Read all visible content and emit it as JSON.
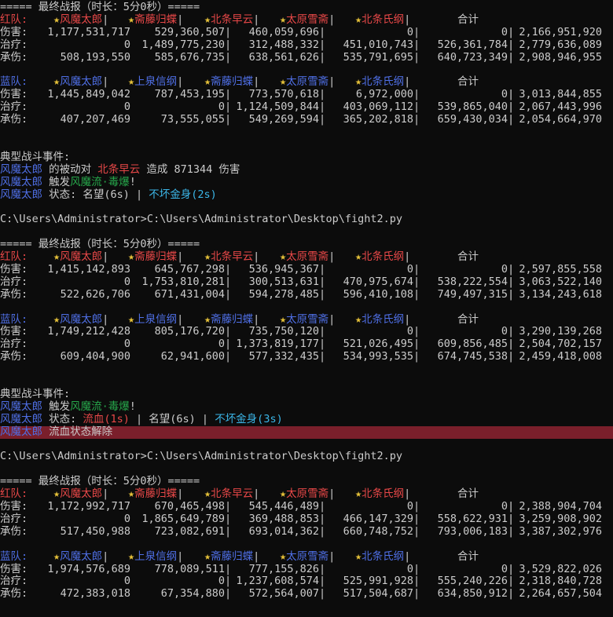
{
  "colors": {
    "red": "#e84848",
    "blue": "#4f6fe6",
    "green": "#27a84b",
    "cyan": "#3bb6e8",
    "white": "#cccccc",
    "gold": "#e8c33a",
    "highlight": "#7a1f2b"
  },
  "prompt": "C:\\Users\\Administrator>C:\\Users\\Administrator\\Desktop\\fight2.py",
  "blocks": [
    {
      "header": "===== 最终战报（时长：5分0秒）=====",
      "red_team": {
        "label": "红队:",
        "names": [
          "风魔太郎",
          "斋藤归蝶",
          "北条早云",
          "太原雪斋",
          "北条氏纲"
        ],
        "total_label": "合计",
        "rows": [
          {
            "label": "伤害:",
            "values": [
              "1,177,531,717",
              "529,360,507",
              "460,059,696",
              "0",
              "0",
              "2,166,951,920"
            ]
          },
          {
            "label": "治疗:",
            "values": [
              "0",
              "1,489,775,230",
              "312,488,332",
              "451,010,743",
              "526,361,784",
              "2,779,636,089"
            ]
          },
          {
            "label": "承伤:",
            "values": [
              "508,193,550",
              "585,676,735",
              "638,561,626",
              "535,791,695",
              "640,723,349",
              "2,908,946,955"
            ]
          }
        ]
      },
      "blue_team": {
        "label": "蓝队:",
        "names": [
          "风魔太郎",
          "上泉信纲",
          "斋藤归蝶",
          "太原雪斋",
          "北条氏纲"
        ],
        "total_label": "合计",
        "rows": [
          {
            "label": "伤害:",
            "values": [
              "1,445,849,042",
              "787,453,195",
              "773,570,618",
              "6,972,000",
              "0",
              "3,013,844,855"
            ]
          },
          {
            "label": "治疗:",
            "values": [
              "0",
              "0",
              "1,124,509,844",
              "403,069,112",
              "539,865,040",
              "2,067,443,996"
            ]
          },
          {
            "label": "承伤:",
            "values": [
              "407,207,469",
              "73,555,055",
              "549,269,594",
              "365,202,818",
              "659,430,034",
              "2,054,664,970"
            ]
          }
        ]
      },
      "events_title": "典型战斗事件:",
      "events": [
        [
          {
            "t": "风魔太郎",
            "c": "blue"
          },
          {
            "t": " 的被动对 ",
            "c": "white"
          },
          {
            "t": "北条早云",
            "c": "red"
          },
          {
            "t": " 造成 871344 伤害",
            "c": "white"
          }
        ],
        [
          {
            "t": "风魔太郎",
            "c": "blue"
          },
          {
            "t": " 触发",
            "c": "white"
          },
          {
            "t": "风魔流·毒爆",
            "c": "green"
          },
          {
            "t": "!",
            "c": "white"
          }
        ],
        [
          {
            "t": "风魔太郎",
            "c": "blue"
          },
          {
            "t": " 状态: 名望(6s) | ",
            "c": "white"
          },
          {
            "t": "不坏金身(2s)",
            "c": "cyan"
          }
        ]
      ]
    },
    {
      "header": "===== 最终战报（时长：5分0秒）=====",
      "red_team": {
        "label": "红队:",
        "names": [
          "风魔太郎",
          "斋藤归蝶",
          "北条早云",
          "太原雪斋",
          "北条氏纲"
        ],
        "total_label": "合计",
        "rows": [
          {
            "label": "伤害:",
            "values": [
              "1,415,142,893",
              "645,767,298",
              "536,945,367",
              "0",
              "0",
              "2,597,855,558"
            ]
          },
          {
            "label": "治疗:",
            "values": [
              "0",
              "1,753,810,281",
              "300,513,631",
              "470,975,674",
              "538,222,554",
              "3,063,522,140"
            ]
          },
          {
            "label": "承伤:",
            "values": [
              "522,626,706",
              "671,431,004",
              "594,278,485",
              "596,410,108",
              "749,497,315",
              "3,134,243,618"
            ]
          }
        ]
      },
      "blue_team": {
        "label": "蓝队:",
        "names": [
          "风魔太郎",
          "上泉信纲",
          "斋藤归蝶",
          "太原雪斋",
          "北条氏纲"
        ],
        "total_label": "合计",
        "rows": [
          {
            "label": "伤害:",
            "values": [
              "1,749,212,428",
              "805,176,720",
              "735,750,120",
              "0",
              "0",
              "3,290,139,268"
            ]
          },
          {
            "label": "治疗:",
            "values": [
              "0",
              "0",
              "1,373,819,177",
              "521,026,495",
              "609,856,485",
              "2,504,702,157"
            ]
          },
          {
            "label": "承伤:",
            "values": [
              "609,404,900",
              "62,941,600",
              "577,332,435",
              "534,993,535",
              "674,745,538",
              "2,459,418,008"
            ]
          }
        ]
      },
      "events_title": "典型战斗事件:",
      "events": [
        [
          {
            "t": "风魔太郎",
            "c": "blue"
          },
          {
            "t": " 触发",
            "c": "white"
          },
          {
            "t": "风魔流·毒爆",
            "c": "green"
          },
          {
            "t": "!",
            "c": "white"
          }
        ],
        [
          {
            "t": "风魔太郎",
            "c": "blue"
          },
          {
            "t": " 状态: ",
            "c": "white"
          },
          {
            "t": "流血(1s)",
            "c": "red"
          },
          {
            "t": " | 名望(6s) | ",
            "c": "white"
          },
          {
            "t": "不坏金身(3s)",
            "c": "cyan"
          }
        ],
        [
          {
            "t": "风魔太郎",
            "c": "blue",
            "hl": true
          },
          {
            "t": " 流血状态解除",
            "c": "white",
            "hl": true
          }
        ]
      ]
    },
    {
      "header": "===== 最终战报（时长：5分0秒）=====",
      "red_team": {
        "label": "红队:",
        "names": [
          "风魔太郎",
          "斋藤归蝶",
          "北条早云",
          "太原雪斋",
          "北条氏纲"
        ],
        "total_label": "合计",
        "rows": [
          {
            "label": "伤害:",
            "values": [
              "1,172,992,717",
              "670,465,498",
              "545,446,489",
              "0",
              "0",
              "2,388,904,704"
            ]
          },
          {
            "label": "治疗:",
            "values": [
              "0",
              "1,865,649,789",
              "369,488,853",
              "466,147,329",
              "558,622,931",
              "3,259,908,902"
            ]
          },
          {
            "label": "承伤:",
            "values": [
              "517,450,988",
              "723,082,691",
              "693,014,362",
              "660,748,752",
              "793,006,183",
              "3,387,302,976"
            ]
          }
        ]
      },
      "blue_team": {
        "label": "蓝队:",
        "names": [
          "风魔太郎",
          "上泉信纲",
          "斋藤归蝶",
          "太原雪斋",
          "北条氏纲"
        ],
        "total_label": "合计",
        "rows": [
          {
            "label": "伤害:",
            "values": [
              "1,974,576,689",
              "778,089,511",
              "777,155,826",
              "0",
              "0",
              "3,529,822,026"
            ]
          },
          {
            "label": "治疗:",
            "values": [
              "0",
              "0",
              "1,237,608,574",
              "525,991,928",
              "555,240,226",
              "2,318,840,728"
            ]
          },
          {
            "label": "承伤:",
            "values": [
              "472,383,018",
              "67,354,880",
              "572,564,007",
              "517,504,687",
              "634,850,912",
              "2,264,657,504"
            ]
          }
        ]
      }
    }
  ]
}
